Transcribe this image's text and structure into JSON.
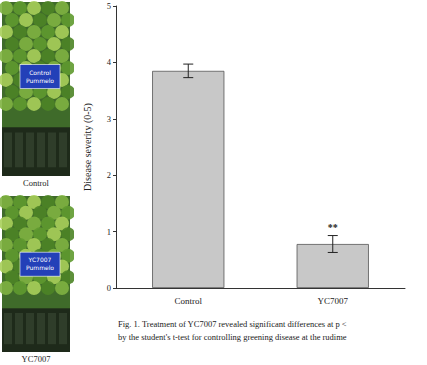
{
  "chart_data": {
    "type": "bar",
    "y_label": "Disease severity (0-5)",
    "categories": [
      "Control",
      "YC7007"
    ],
    "values": [
      3.85,
      0.78
    ],
    "errors": [
      0.12,
      0.15
    ],
    "annotations": [
      {
        "category": "YC7007",
        "text": "**"
      }
    ],
    "color": "#c8c8c8",
    "ylim": [
      0,
      5
    ],
    "yticks": [
      0,
      1,
      2,
      3,
      4,
      5
    ],
    "grid": false,
    "photos": [
      {
        "sign": [
          "Control",
          "Pummelo"
        ],
        "label": "Control"
      },
      {
        "sign": [
          "YC7007",
          "Pummelo"
        ],
        "label": "YC7007"
      }
    ],
    "caption": [
      "Fig. 1. Treatment of YC7007 revealed significant differences at p <",
      "by the student's t-test for controlling greening disease at the rudime"
    ]
  }
}
